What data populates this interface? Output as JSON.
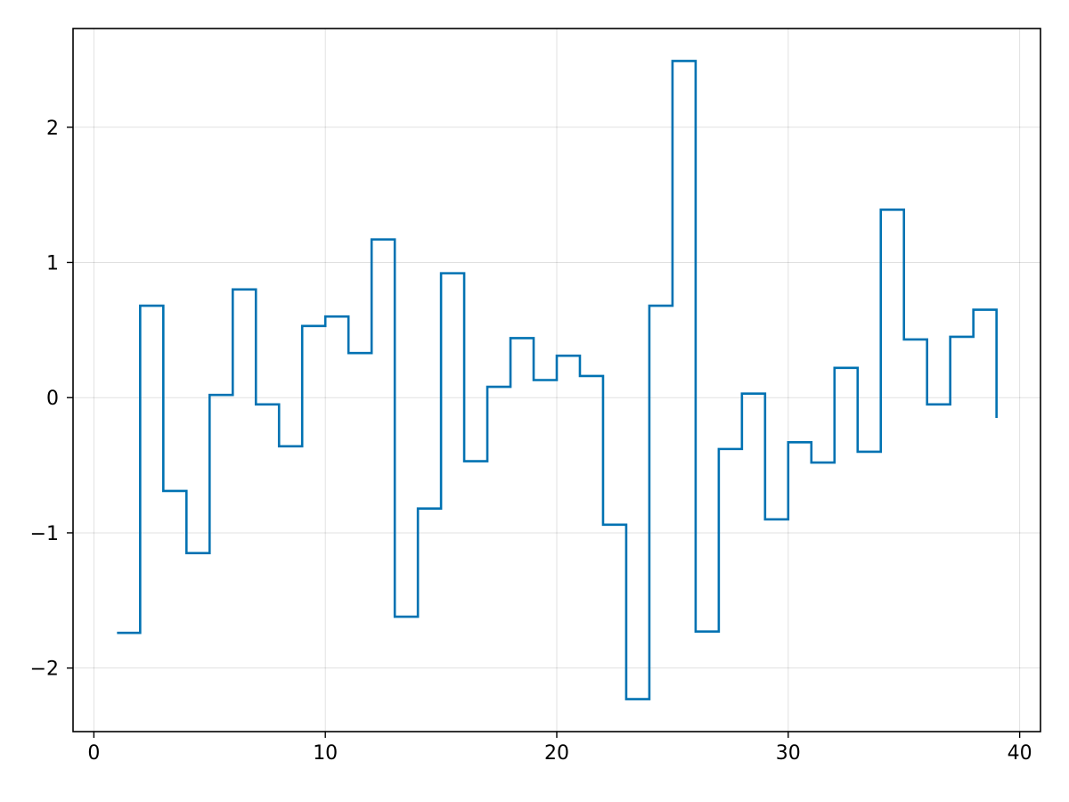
{
  "chart_data": {
    "type": "line",
    "step": "post",
    "title": "",
    "xlabel": "",
    "ylabel": "",
    "xlim": [
      -0.9,
      40.9
    ],
    "ylim": [
      -2.47,
      2.73
    ],
    "grid": true,
    "x_ticks": [
      0,
      10,
      20,
      30,
      40
    ],
    "x_tick_labels": [
      "0",
      "10",
      "20",
      "30",
      "40"
    ],
    "y_ticks": [
      -2,
      -1,
      0,
      1,
      2
    ],
    "y_tick_labels": [
      "−2",
      "−1",
      "0",
      "1",
      "2"
    ],
    "series": [
      {
        "color": "#0072b2",
        "x": [
          1,
          2,
          3,
          4,
          5,
          6,
          7,
          8,
          9,
          10,
          11,
          12,
          13,
          14,
          15,
          16,
          17,
          18,
          19,
          20,
          21,
          22,
          23,
          24,
          25,
          26,
          27,
          28,
          29,
          30,
          31,
          32,
          33,
          34,
          35,
          36,
          37,
          38,
          39
        ],
        "values": [
          -1.74,
          0.68,
          -0.69,
          -1.15,
          0.02,
          0.8,
          -0.05,
          -0.36,
          0.53,
          0.6,
          0.33,
          1.17,
          -1.62,
          -0.82,
          0.92,
          -0.47,
          0.08,
          0.44,
          0.13,
          0.31,
          0.16,
          -0.94,
          -2.23,
          0.68,
          2.49,
          -1.73,
          -0.38,
          0.03,
          -0.9,
          -0.33,
          -0.48,
          0.22,
          -0.4,
          1.39,
          0.43,
          -0.05,
          0.45,
          0.65,
          -0.15
        ]
      }
    ]
  }
}
